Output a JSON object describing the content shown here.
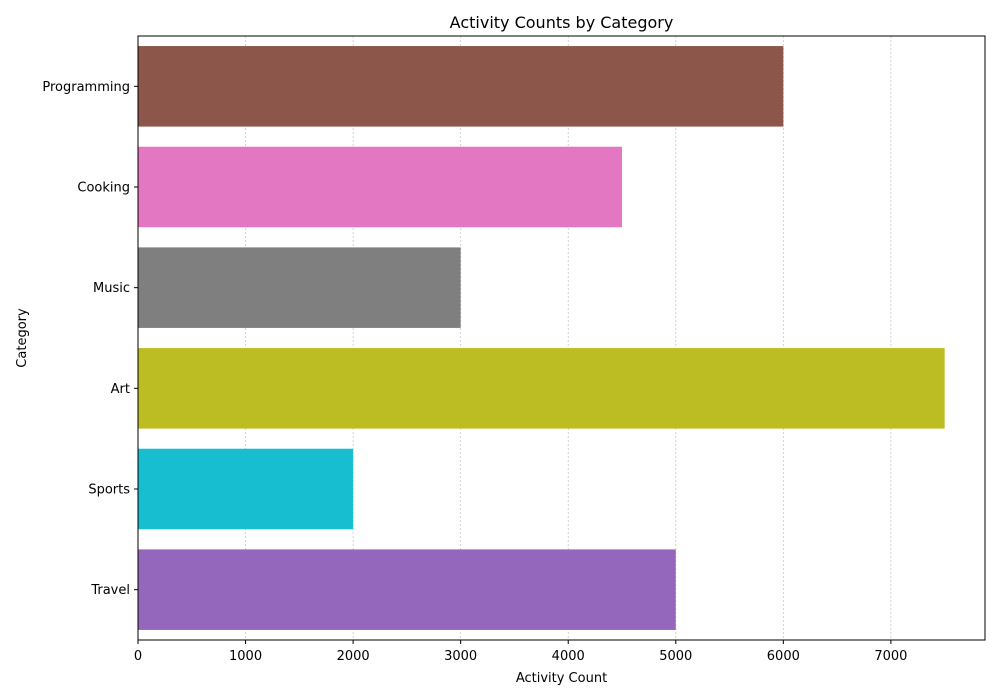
{
  "chart_data": {
    "type": "bar",
    "orientation": "horizontal",
    "title": "Activity Counts by Category",
    "xlabel": "Activity Count",
    "ylabel": "Category",
    "categories": [
      "Travel",
      "Sports",
      "Art",
      "Music",
      "Cooking",
      "Programming"
    ],
    "values": [
      5000,
      2000,
      7500,
      3000,
      4500,
      6000
    ],
    "colors": [
      "#9467bd",
      "#17becf",
      "#bcbd22",
      "#7f7f7f",
      "#e377c2",
      "#8c564b"
    ],
    "xlim": [
      0,
      7875
    ],
    "xticks": [
      0,
      1000,
      2000,
      3000,
      4000,
      5000,
      6000,
      7000
    ],
    "grid": "x-axis dotted",
    "legend": "none"
  }
}
